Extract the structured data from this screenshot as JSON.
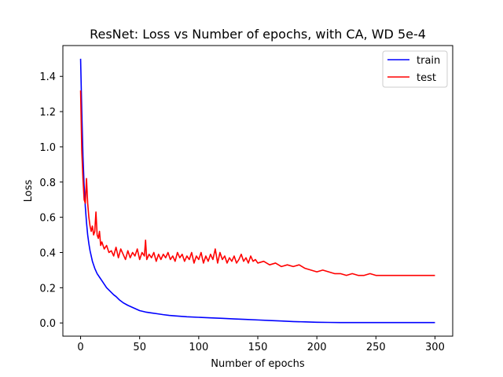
{
  "chart_data": {
    "type": "line",
    "title": "ResNet: Loss vs Number of epochs, with CA, WD 5e-4",
    "xlabel": "Number of epochs",
    "ylabel": "Loss",
    "xlim": [
      -15,
      315
    ],
    "ylim": [
      -0.075,
      1.575
    ],
    "xticks": [
      0,
      50,
      100,
      150,
      200,
      250,
      300
    ],
    "yticks": [
      0.0,
      0.2,
      0.4,
      0.6,
      0.8,
      1.0,
      1.2,
      1.4
    ],
    "xtick_labels": [
      "0",
      "50",
      "100",
      "150",
      "200",
      "250",
      "300"
    ],
    "ytick_labels": [
      "0.0",
      "0.2",
      "0.4",
      "0.6",
      "0.8",
      "1.0",
      "1.2",
      "1.4"
    ],
    "legend_position": "top-right",
    "grid": false,
    "series": [
      {
        "name": "train",
        "color": "#0000ff",
        "points": [
          [
            0,
            1.5
          ],
          [
            1,
            1.2
          ],
          [
            2,
            0.95
          ],
          [
            3,
            0.78
          ],
          [
            4,
            0.66
          ],
          [
            5,
            0.57
          ],
          [
            6,
            0.5
          ],
          [
            7,
            0.45
          ],
          [
            8,
            0.41
          ],
          [
            9,
            0.38
          ],
          [
            10,
            0.35
          ],
          [
            12,
            0.31
          ],
          [
            14,
            0.28
          ],
          [
            16,
            0.26
          ],
          [
            18,
            0.24
          ],
          [
            20,
            0.22
          ],
          [
            22,
            0.2
          ],
          [
            25,
            0.18
          ],
          [
            28,
            0.16
          ],
          [
            30,
            0.15
          ],
          [
            33,
            0.13
          ],
          [
            36,
            0.115
          ],
          [
            40,
            0.1
          ],
          [
            45,
            0.085
          ],
          [
            50,
            0.07
          ],
          [
            55,
            0.062
          ],
          [
            60,
            0.057
          ],
          [
            65,
            0.052
          ],
          [
            70,
            0.047
          ],
          [
            75,
            0.043
          ],
          [
            80,
            0.04
          ],
          [
            90,
            0.035
          ],
          [
            100,
            0.032
          ],
          [
            110,
            0.029
          ],
          [
            120,
            0.026
          ],
          [
            130,
            0.023
          ],
          [
            140,
            0.02
          ],
          [
            150,
            0.017
          ],
          [
            160,
            0.014
          ],
          [
            170,
            0.011
          ],
          [
            180,
            0.008
          ],
          [
            190,
            0.006
          ],
          [
            200,
            0.004
          ],
          [
            210,
            0.003
          ],
          [
            220,
            0.002
          ],
          [
            250,
            0.002
          ],
          [
            300,
            0.002
          ]
        ]
      },
      {
        "name": "test",
        "color": "#ff0000",
        "points": [
          [
            0,
            1.32
          ],
          [
            1,
            0.98
          ],
          [
            2,
            0.82
          ],
          [
            3,
            0.7
          ],
          [
            4,
            0.68
          ],
          [
            5,
            0.82
          ],
          [
            6,
            0.68
          ],
          [
            7,
            0.6
          ],
          [
            8,
            0.55
          ],
          [
            9,
            0.52
          ],
          [
            10,
            0.55
          ],
          [
            11,
            0.5
          ],
          [
            12,
            0.52
          ],
          [
            13,
            0.63
          ],
          [
            14,
            0.5
          ],
          [
            15,
            0.48
          ],
          [
            16,
            0.52
          ],
          [
            17,
            0.44
          ],
          [
            18,
            0.46
          ],
          [
            20,
            0.42
          ],
          [
            22,
            0.44
          ],
          [
            24,
            0.4
          ],
          [
            26,
            0.41
          ],
          [
            28,
            0.38
          ],
          [
            30,
            0.43
          ],
          [
            32,
            0.37
          ],
          [
            34,
            0.42
          ],
          [
            36,
            0.39
          ],
          [
            38,
            0.36
          ],
          [
            40,
            0.41
          ],
          [
            42,
            0.37
          ],
          [
            44,
            0.4
          ],
          [
            46,
            0.38
          ],
          [
            48,
            0.42
          ],
          [
            50,
            0.36
          ],
          [
            52,
            0.4
          ],
          [
            54,
            0.38
          ],
          [
            55,
            0.47
          ],
          [
            56,
            0.36
          ],
          [
            58,
            0.39
          ],
          [
            60,
            0.37
          ],
          [
            62,
            0.4
          ],
          [
            64,
            0.35
          ],
          [
            66,
            0.39
          ],
          [
            68,
            0.36
          ],
          [
            70,
            0.39
          ],
          [
            72,
            0.37
          ],
          [
            74,
            0.4
          ],
          [
            76,
            0.36
          ],
          [
            78,
            0.38
          ],
          [
            80,
            0.35
          ],
          [
            82,
            0.4
          ],
          [
            84,
            0.37
          ],
          [
            86,
            0.39
          ],
          [
            88,
            0.35
          ],
          [
            90,
            0.38
          ],
          [
            92,
            0.36
          ],
          [
            94,
            0.4
          ],
          [
            96,
            0.34
          ],
          [
            98,
            0.38
          ],
          [
            100,
            0.36
          ],
          [
            102,
            0.4
          ],
          [
            104,
            0.34
          ],
          [
            106,
            0.38
          ],
          [
            108,
            0.35
          ],
          [
            110,
            0.39
          ],
          [
            112,
            0.36
          ],
          [
            114,
            0.42
          ],
          [
            116,
            0.34
          ],
          [
            118,
            0.4
          ],
          [
            120,
            0.36
          ],
          [
            122,
            0.38
          ],
          [
            124,
            0.34
          ],
          [
            126,
            0.37
          ],
          [
            128,
            0.35
          ],
          [
            130,
            0.38
          ],
          [
            132,
            0.34
          ],
          [
            134,
            0.36
          ],
          [
            136,
            0.39
          ],
          [
            138,
            0.35
          ],
          [
            140,
            0.37
          ],
          [
            142,
            0.34
          ],
          [
            144,
            0.38
          ],
          [
            146,
            0.35
          ],
          [
            148,
            0.36
          ],
          [
            150,
            0.34
          ],
          [
            155,
            0.35
          ],
          [
            160,
            0.33
          ],
          [
            165,
            0.34
          ],
          [
            170,
            0.32
          ],
          [
            175,
            0.33
          ],
          [
            180,
            0.32
          ],
          [
            185,
            0.33
          ],
          [
            190,
            0.31
          ],
          [
            195,
            0.3
          ],
          [
            200,
            0.29
          ],
          [
            205,
            0.3
          ],
          [
            210,
            0.29
          ],
          [
            215,
            0.28
          ],
          [
            220,
            0.28
          ],
          [
            225,
            0.27
          ],
          [
            230,
            0.28
          ],
          [
            235,
            0.27
          ],
          [
            240,
            0.27
          ],
          [
            245,
            0.28
          ],
          [
            250,
            0.27
          ],
          [
            255,
            0.27
          ],
          [
            260,
            0.27
          ],
          [
            265,
            0.27
          ],
          [
            270,
            0.27
          ],
          [
            275,
            0.27
          ],
          [
            280,
            0.27
          ],
          [
            285,
            0.27
          ],
          [
            290,
            0.27
          ],
          [
            295,
            0.27
          ],
          [
            300,
            0.27
          ]
        ]
      }
    ]
  }
}
